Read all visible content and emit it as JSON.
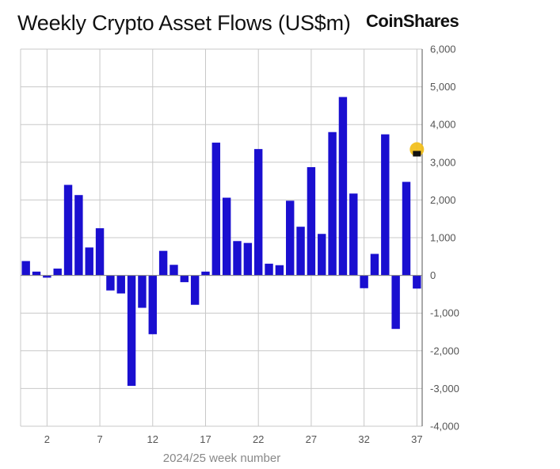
{
  "chart_data": {
    "type": "bar",
    "title": "Weekly Crypto Asset Flows (US$m)",
    "brand": "CoinShares",
    "xlabel": "2024/25 week number",
    "ylabel": "",
    "ylim": [
      -4000,
      6000
    ],
    "yticks": [
      6000,
      5000,
      4000,
      3000,
      2000,
      1000,
      0,
      -1000,
      -2000,
      -3000,
      -4000
    ],
    "ytick_labels": [
      "6,000",
      "5,000",
      "4,000",
      "3,000",
      "2,000",
      "1,000",
      "0",
      "-1,000",
      "-2,000",
      "-3,000",
      "-4,000"
    ],
    "xticks": [
      2,
      7,
      12,
      17,
      22,
      27,
      32,
      37
    ],
    "categories": [
      0,
      1,
      2,
      3,
      4,
      5,
      6,
      7,
      8,
      9,
      10,
      11,
      12,
      13,
      14,
      15,
      16,
      17,
      18,
      19,
      20,
      21,
      22,
      23,
      24,
      25,
      26,
      27,
      28,
      29,
      30,
      31,
      32,
      33,
      34,
      35,
      36,
      37
    ],
    "values": [
      380,
      100,
      -60,
      180,
      2400,
      2130,
      740,
      1250,
      -400,
      -480,
      -2930,
      -860,
      -1560,
      650,
      280,
      -180,
      -780,
      100,
      3520,
      2060,
      910,
      860,
      3350,
      310,
      270,
      1980,
      1290,
      2870,
      1100,
      3800,
      4730,
      2170,
      -340,
      570,
      3740,
      -1420,
      2480,
      -350
    ],
    "bar_color": "#1a0fd0",
    "grid": true,
    "annotation": {
      "category": 37,
      "value": 3300,
      "colors": [
        "#f2c01e",
        "#111111"
      ]
    }
  }
}
